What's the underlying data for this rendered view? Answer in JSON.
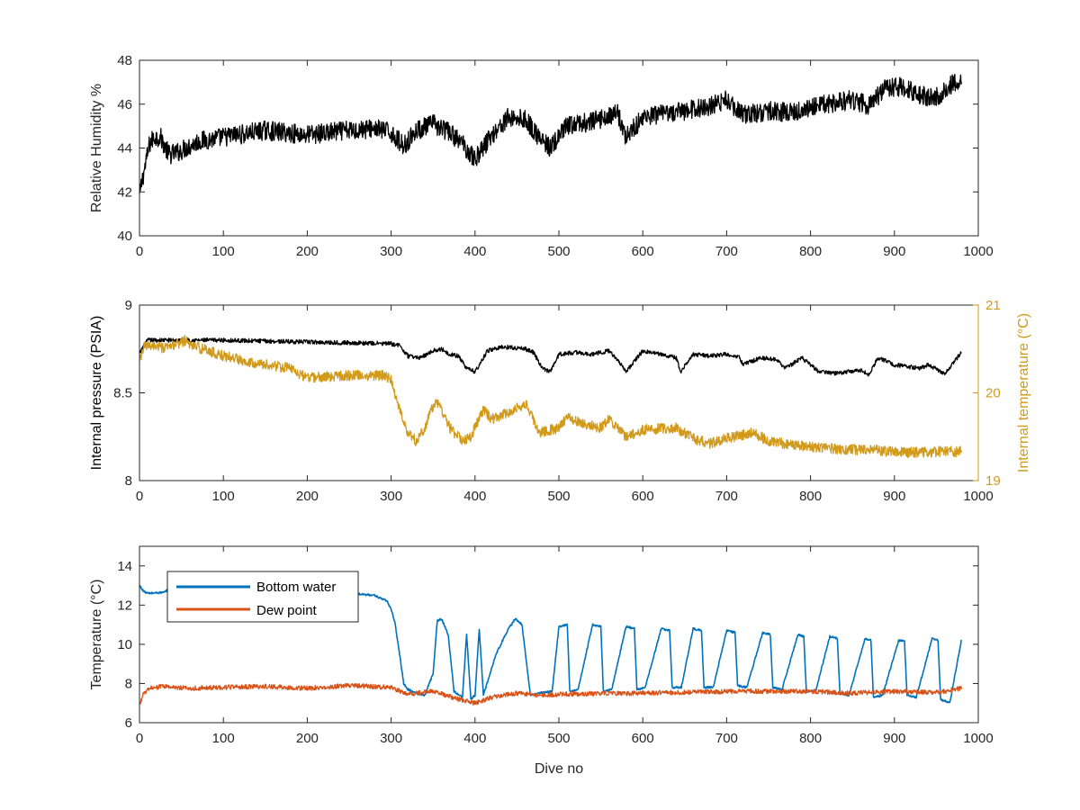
{
  "chart_data": [
    {
      "type": "line",
      "id": "humidity",
      "xlabel": "",
      "ylabel": "Relative Humidity %",
      "xlim": [
        0,
        1000
      ],
      "ylim": [
        40,
        48
      ],
      "xticks": [
        0,
        100,
        200,
        300,
        400,
        500,
        600,
        700,
        800,
        900,
        1000
      ],
      "yticks": [
        40,
        42,
        44,
        46,
        48
      ],
      "grid": false,
      "series": [
        {
          "color": "#000000",
          "noise": 0.45,
          "x": [
            0,
            3,
            8,
            12,
            18,
            25,
            35,
            45,
            55,
            70,
            100,
            150,
            200,
            250,
            280,
            300,
            315,
            330,
            350,
            370,
            385,
            400,
            420,
            440,
            460,
            480,
            490,
            510,
            540,
            570,
            580,
            600,
            620,
            650,
            680,
            700,
            720,
            750,
            780,
            800,
            820,
            850,
            870,
            890,
            910,
            930,
            950,
            970,
            980
          ],
          "y": [
            41.8,
            42.5,
            43.4,
            44.2,
            44.5,
            44.5,
            43.7,
            43.8,
            44.0,
            44.3,
            44.5,
            44.8,
            44.6,
            44.8,
            44.9,
            44.7,
            44.1,
            44.8,
            45.1,
            44.7,
            44.2,
            43.5,
            44.6,
            45.4,
            45.3,
            44.3,
            44.0,
            45.0,
            45.2,
            45.6,
            44.5,
            45.4,
            45.5,
            45.7,
            45.9,
            46.2,
            45.5,
            45.7,
            45.6,
            45.9,
            46.0,
            46.2,
            45.9,
            46.8,
            46.8,
            46.4,
            46.3,
            47.0,
            47.1
          ]
        }
      ]
    },
    {
      "type": "line",
      "id": "pressure-temperature",
      "xlabel": "",
      "ylabel": "Internal pressure (PSIA)",
      "y2label": "Internal temperature (°C)",
      "xlim": [
        0,
        1000
      ],
      "ylim": [
        8,
        9
      ],
      "y2lim": [
        19,
        21
      ],
      "xticks": [
        0,
        100,
        200,
        300,
        400,
        500,
        600,
        700,
        800,
        900,
        1000
      ],
      "yticks": [
        8,
        8.5,
        9
      ],
      "y2ticks": [
        19,
        20,
        21
      ],
      "grid": false,
      "series": [
        {
          "axis": "left",
          "color": "#000000",
          "noise": 0.012,
          "x": [
            0,
            5,
            10,
            100,
            200,
            300,
            310,
            320,
            335,
            350,
            360,
            370,
            380,
            390,
            400,
            410,
            415,
            430,
            440,
            460,
            470,
            480,
            490,
            500,
            520,
            540,
            560,
            575,
            580,
            600,
            620,
            640,
            645,
            660,
            680,
            700,
            715,
            720,
            740,
            760,
            770,
            790,
            800,
            810,
            830,
            860,
            870,
            880,
            900,
            930,
            940,
            960,
            970,
            980
          ],
          "y": [
            8.72,
            8.77,
            8.8,
            8.8,
            8.79,
            8.78,
            8.77,
            8.71,
            8.7,
            8.74,
            8.75,
            8.72,
            8.71,
            8.64,
            8.62,
            8.7,
            8.74,
            8.76,
            8.76,
            8.75,
            8.73,
            8.64,
            8.62,
            8.72,
            8.73,
            8.72,
            8.74,
            8.66,
            8.62,
            8.74,
            8.72,
            8.7,
            8.62,
            8.72,
            8.71,
            8.72,
            8.7,
            8.66,
            8.7,
            8.69,
            8.64,
            8.7,
            8.66,
            8.62,
            8.61,
            8.63,
            8.6,
            8.7,
            8.66,
            8.64,
            8.66,
            8.61,
            8.67,
            8.73
          ]
        },
        {
          "axis": "right",
          "color": "#D19A1A",
          "noise": 0.06,
          "x": [
            0,
            5,
            15,
            30,
            55,
            60,
            100,
            150,
            180,
            200,
            250,
            290,
            300,
            310,
            320,
            330,
            340,
            350,
            355,
            360,
            370,
            385,
            395,
            410,
            420,
            440,
            460,
            465,
            475,
            500,
            510,
            530,
            550,
            560,
            580,
            600,
            640,
            660,
            680,
            700,
            720,
            730,
            750,
            770,
            800,
            830,
            860,
            880,
            900,
            930,
            950,
            980
          ],
          "y": [
            20.35,
            20.52,
            20.55,
            20.5,
            20.6,
            20.55,
            20.42,
            20.32,
            20.28,
            20.17,
            20.2,
            20.2,
            20.15,
            19.8,
            19.55,
            19.45,
            19.6,
            19.85,
            19.9,
            19.82,
            19.6,
            19.45,
            19.5,
            19.8,
            19.7,
            19.78,
            19.88,
            19.8,
            19.55,
            19.6,
            19.72,
            19.65,
            19.6,
            19.7,
            19.5,
            19.58,
            19.6,
            19.48,
            19.42,
            19.48,
            19.52,
            19.55,
            19.45,
            19.42,
            19.38,
            19.36,
            19.35,
            19.35,
            19.32,
            19.32,
            19.33,
            19.33
          ]
        }
      ]
    },
    {
      "type": "line",
      "id": "temperature",
      "xlabel": "Dive no",
      "ylabel": "Temperature (°C)",
      "xlim": [
        0,
        1000
      ],
      "ylim": [
        6,
        15
      ],
      "xticks": [
        0,
        100,
        200,
        300,
        400,
        500,
        600,
        700,
        800,
        900,
        1000
      ],
      "yticks": [
        6,
        8,
        10,
        12,
        14
      ],
      "grid": false,
      "legend": "top-left",
      "series": [
        {
          "name": "Bottom water",
          "color": "#0072BD",
          "noise": 0.05,
          "x": [
            0,
            5,
            10,
            30,
            35,
            50,
            100,
            150,
            200,
            250,
            280,
            295,
            300,
            305,
            310,
            315,
            320,
            330,
            340,
            350,
            355,
            360,
            368,
            375,
            385,
            390,
            395,
            400,
            405,
            410,
            425,
            440,
            448,
            456,
            466,
            475,
            492,
            500,
            510,
            513,
            523,
            540,
            550,
            553,
            563,
            580,
            590,
            593,
            603,
            622,
            632,
            635,
            646,
            660,
            670,
            673,
            684,
            700,
            710,
            713,
            724,
            743,
            752,
            755,
            766,
            785,
            792,
            795,
            806,
            823,
            832,
            835,
            846,
            865,
            872,
            875,
            886,
            905,
            912,
            915,
            926,
            945,
            952,
            955,
            966,
            980
          ],
          "y": [
            13.0,
            12.7,
            12.6,
            12.65,
            12.85,
            12.9,
            12.85,
            12.8,
            12.75,
            12.6,
            12.5,
            12.2,
            11.8,
            11.0,
            9.5,
            8.0,
            7.7,
            7.5,
            7.4,
            8.5,
            11.2,
            11.3,
            10.5,
            7.6,
            7.3,
            10.5,
            7.2,
            7.4,
            10.8,
            7.4,
            9.5,
            10.8,
            11.3,
            11.0,
            7.4,
            7.5,
            7.6,
            10.9,
            11.0,
            7.6,
            7.7,
            11.0,
            10.9,
            7.6,
            7.7,
            10.9,
            10.8,
            7.7,
            7.8,
            10.8,
            10.7,
            7.8,
            7.8,
            10.8,
            10.7,
            7.8,
            7.8,
            10.7,
            10.6,
            7.9,
            7.8,
            10.6,
            10.5,
            7.8,
            7.7,
            10.5,
            10.4,
            7.6,
            7.6,
            10.4,
            10.3,
            7.5,
            7.4,
            10.3,
            10.2,
            7.3,
            7.4,
            10.2,
            10.2,
            7.4,
            7.3,
            10.3,
            10.2,
            7.2,
            7.0,
            10.25
          ]
        },
        {
          "name": "Dew point",
          "color": "#D95319",
          "noise": 0.12,
          "x": [
            0,
            5,
            15,
            30,
            60,
            100,
            150,
            200,
            250,
            300,
            320,
            350,
            380,
            400,
            420,
            450,
            480,
            500,
            550,
            600,
            650,
            700,
            750,
            800,
            850,
            900,
            950,
            980
          ],
          "y": [
            6.9,
            7.5,
            7.8,
            7.85,
            7.75,
            7.8,
            7.85,
            7.75,
            7.9,
            7.8,
            7.45,
            7.6,
            7.2,
            7.0,
            7.3,
            7.5,
            7.4,
            7.45,
            7.5,
            7.5,
            7.55,
            7.6,
            7.6,
            7.6,
            7.5,
            7.6,
            7.55,
            7.75
          ]
        }
      ]
    }
  ]
}
